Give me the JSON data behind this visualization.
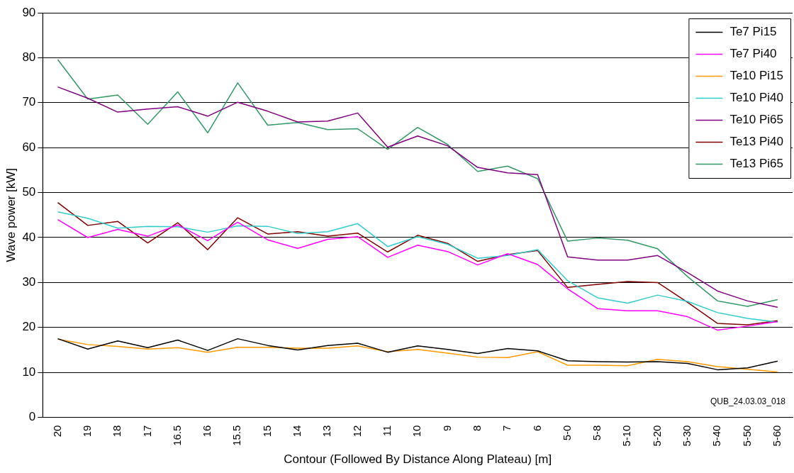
{
  "chart_data": {
    "type": "line",
    "xlabel": "Contour (Followed By Distance Along Plateau) [m]",
    "ylabel": "Wave power [kW]",
    "categories": [
      "20",
      "19",
      "18",
      "17",
      "16.5",
      "16",
      "15.5",
      "15",
      "14",
      "13",
      "12",
      "11",
      "10",
      "9",
      "8",
      "7",
      "6",
      "5-0",
      "5-8",
      "5-10",
      "5-20",
      "5-30",
      "5-40",
      "5-50",
      "5-60"
    ],
    "series": [
      {
        "name": "Te7 Pi15",
        "color": "#000000",
        "values": [
          17.5,
          15.2,
          17,
          15.5,
          17.2,
          14.9,
          17.5,
          16,
          15,
          16,
          16.5,
          14.5,
          15.9,
          15.1,
          14.2,
          15.3,
          14.8,
          12.6,
          12.4,
          12.3,
          12.4,
          12,
          10.6,
          11,
          12.5
        ]
      },
      {
        "name": "Te7 Pi40",
        "color": "#ff00ff",
        "values": [
          44,
          40,
          41.8,
          40.3,
          42.8,
          39.3,
          43.4,
          39.5,
          37.6,
          39.6,
          40.2,
          35.6,
          38.3,
          36.9,
          33.9,
          36.4,
          34,
          28.6,
          24.2,
          23.7,
          23.7,
          22.4,
          19.4,
          20.3,
          21.3
        ]
      },
      {
        "name": "Te10 Pi15",
        "color": "#ff9900",
        "values": [
          17.4,
          16.2,
          15.8,
          15.2,
          15.5,
          14.5,
          15.6,
          15.6,
          15.4,
          15.4,
          15.9,
          14.6,
          15.1,
          14.3,
          13.4,
          13.3,
          14.6,
          11.6,
          11.6,
          11.5,
          12.9,
          12.4,
          11.3,
          10.7,
          10.1
        ]
      },
      {
        "name": "Te10 Pi40",
        "color": "#33cccc",
        "values": [
          45.7,
          44.3,
          42.1,
          42.5,
          42.4,
          41.2,
          42.6,
          42.5,
          40.9,
          41.3,
          43.1,
          38,
          40.2,
          38.5,
          35.4,
          36,
          37.3,
          30.4,
          26.6,
          25.4,
          27.2,
          25.8,
          23.3,
          22,
          21.2
        ]
      },
      {
        "name": "Te10 Pi65",
        "color": "#800080",
        "values": [
          73.5,
          71,
          67.9,
          68.6,
          69.1,
          67,
          70.1,
          68.1,
          65.7,
          65.9,
          67.7,
          60.1,
          62.6,
          60.4,
          55.6,
          54.4,
          54,
          35.7,
          35,
          35,
          36,
          32.2,
          28.1,
          25.9,
          24.5
        ]
      },
      {
        "name": "Te13 Pi40",
        "color": "#800000",
        "values": [
          47.8,
          42.7,
          43.6,
          38.8,
          43.3,
          37.3,
          44.4,
          40.8,
          41.3,
          40.3,
          41,
          36.8,
          40.5,
          38.7,
          34.7,
          36.2,
          37.1,
          28.9,
          29.6,
          30.2,
          30,
          25.6,
          20.9,
          20.6,
          21.5
        ]
      },
      {
        "name": "Te13 Pi65",
        "color": "#339966",
        "values": [
          79.6,
          70.8,
          71.7,
          65.2,
          72.4,
          63.3,
          74.4,
          65,
          65.6,
          64,
          64.2,
          59.6,
          64.5,
          60.7,
          54.7,
          55.9,
          53.1,
          39.2,
          39.9,
          39.4,
          37.5,
          31.3,
          25.9,
          24.7,
          26.2
        ]
      }
    ],
    "ylim": [
      0,
      90
    ],
    "yticks": [
      0,
      10,
      20,
      30,
      40,
      50,
      60,
      70,
      80,
      90
    ],
    "grid": "y",
    "legend": "top right",
    "marker": "none",
    "line_style": "solid",
    "annotations": [
      "QUB_24.03.03_018"
    ]
  }
}
